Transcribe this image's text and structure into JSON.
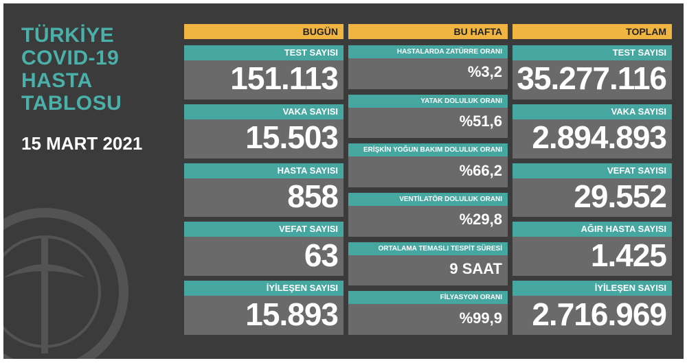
{
  "title": [
    "TÜRKİYE",
    "COVID-19",
    "HASTA",
    "TABLOSU"
  ],
  "date": "15 MART 2021",
  "columns": [
    {
      "header": "BUGÜN",
      "items": [
        {
          "label": "TEST SAYISI",
          "value": "151.113"
        },
        {
          "label": "VAKA SAYISI",
          "value": "15.503"
        },
        {
          "label": "HASTA SAYISI",
          "value": "858"
        },
        {
          "label": "VEFAT SAYISI",
          "value": "63"
        },
        {
          "label": "İYİLEŞEN SAYISI",
          "value": "15.893"
        }
      ]
    },
    {
      "header": "BU HAFTA",
      "items": [
        {
          "label": "HASTALARDA ZATÜRRE ORANI",
          "value": "%3,2"
        },
        {
          "label": "YATAK DOLULUK ORANI",
          "value": "%51,6"
        },
        {
          "label": "ERİŞKİN YOĞUN BAKIM DOLULUK ORANI",
          "value": "%66,2"
        },
        {
          "label": "VENTİLATÖR DOLULUK ORANI",
          "value": "%29,8"
        },
        {
          "label": "ORTALAMA TEMASLI TESPİT SÜRESİ",
          "value": "9 SAAT"
        },
        {
          "label": "FİLYASYON ORANI",
          "value": "%99,9"
        }
      ]
    },
    {
      "header": "TOPLAM",
      "items": [
        {
          "label": "TEST SAYISI",
          "value": "35.277.116"
        },
        {
          "label": "VAKA SAYISI",
          "value": "2.894.893"
        },
        {
          "label": "VEFAT SAYISI",
          "value": "29.552"
        },
        {
          "label": "AĞIR HASTA SAYISI",
          "value": "1.425"
        },
        {
          "label": "İYİLEŞEN SAYISI",
          "value": "2.716.969"
        }
      ]
    }
  ]
}
